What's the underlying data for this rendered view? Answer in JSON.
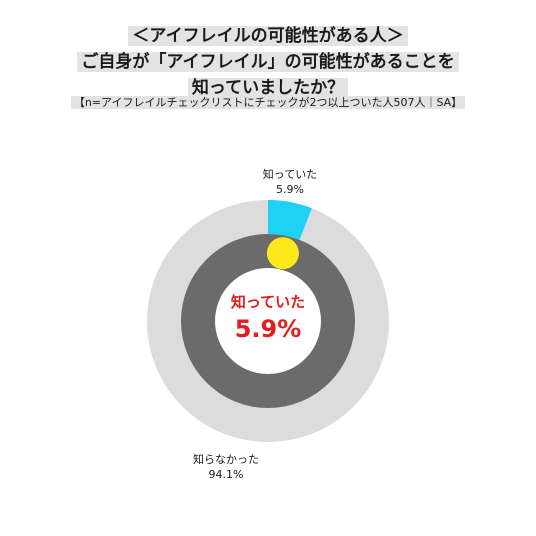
{
  "title_lines": [
    "＜アイフレイルの可能性がある人＞",
    "ご自身が「アイフレイル」の可能性があることを",
    "知っていましたか？"
  ],
  "subtitle": "【n=アイフレイルチェックリストにチェックが2つ以上ついた人507人｜SA】",
  "colors": {
    "outer_ring": "#dcdcdc",
    "inner_ring": "#6b6b6b",
    "highlight": "#1fd2f5",
    "marker": "#ffe91a",
    "center_text": "#e21d1d"
  },
  "chart_data": {
    "type": "pie",
    "title": "",
    "slices": [
      {
        "label": "知っていた",
        "value": 5.9,
        "value_label": "5.9%"
      },
      {
        "label": "知らなかった",
        "value": 94.1,
        "value_label": "94.1%"
      }
    ],
    "center_label": "知っていた",
    "center_value": "5.9%"
  }
}
